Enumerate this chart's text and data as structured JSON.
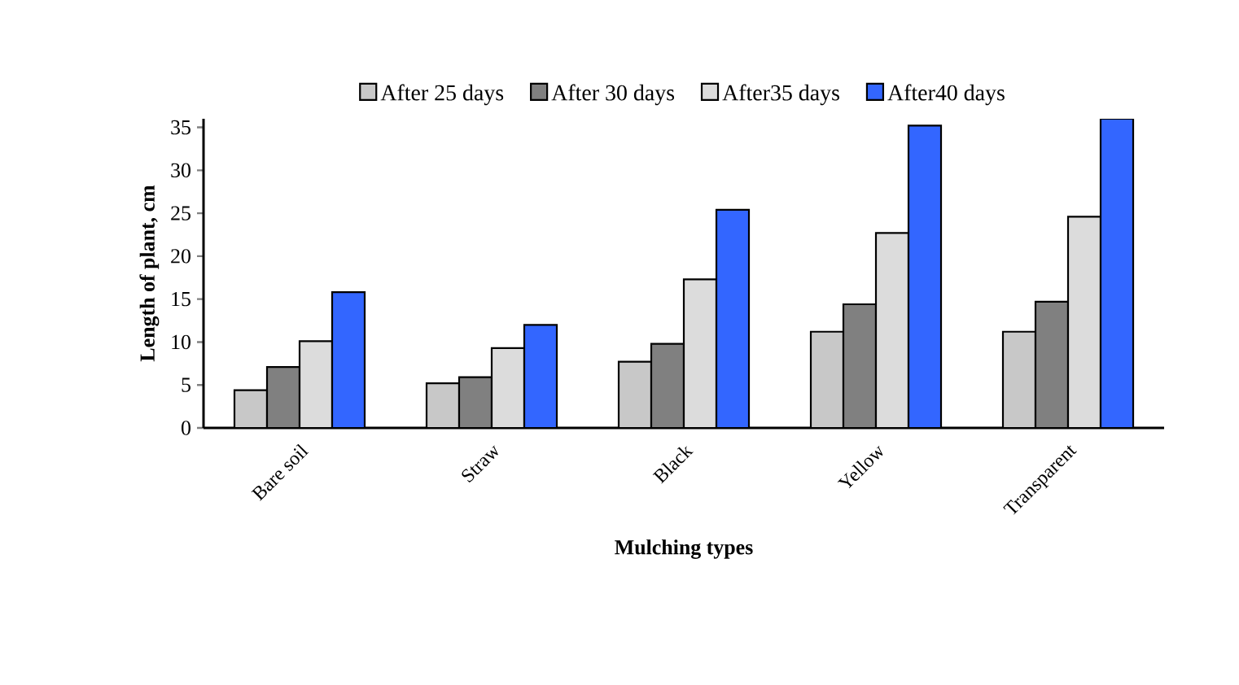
{
  "chart_data": {
    "type": "bar",
    "xlabel": "Mulching types",
    "ylabel": "Length of plant, cm",
    "categories": [
      "Bare soil",
      "Straw",
      "Black",
      "Yellow",
      "Transparent"
    ],
    "series": [
      {
        "name": "After 25 days",
        "color": "#c8c8c8",
        "values": [
          4.4,
          5.2,
          7.7,
          11.2,
          11.2
        ]
      },
      {
        "name": "After 30 days",
        "color": "#808080",
        "values": [
          7.1,
          5.9,
          9.8,
          14.4,
          14.7
        ]
      },
      {
        "name": "After35 days",
        "color": "#dcdcdc",
        "values": [
          10.1,
          9.3,
          17.3,
          22.7,
          24.6
        ]
      },
      {
        "name": "After40 days",
        "color": "#3366ff",
        "values": [
          15.8,
          12.0,
          25.4,
          35.2,
          36
        ]
      }
    ],
    "ylim": [
      0,
      36
    ],
    "yticks": [
      0,
      5,
      10,
      15,
      20,
      25,
      30,
      35
    ],
    "legend": "top"
  }
}
